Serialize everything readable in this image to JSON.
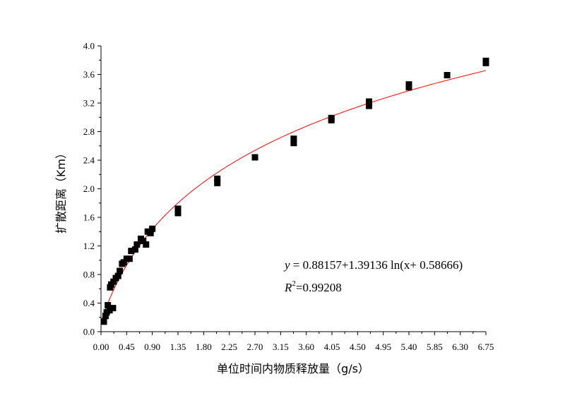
{
  "chart_data": {
    "type": "scatter",
    "xlabel": "单位时间内物质释放量（g/s）",
    "ylabel": "扩散距离（Km）",
    "xlim": [
      0,
      6.75
    ],
    "ylim": [
      0,
      4.0
    ],
    "xticks": [
      "0.00",
      "0.45",
      "0.90",
      "1.35",
      "1.80",
      "2.25",
      "2.70",
      "3.15",
      "3.60",
      "4.05",
      "4.50",
      "4.95",
      "5.40",
      "5.85",
      "6.30",
      "6.75"
    ],
    "yticks": [
      "0.0",
      "0.4",
      "0.8",
      "1.2",
      "1.6",
      "2.0",
      "2.4",
      "2.8",
      "3.2",
      "3.6",
      "4.0"
    ],
    "grid": false,
    "points": [
      [
        0.05,
        0.14
      ],
      [
        0.08,
        0.22
      ],
      [
        0.1,
        0.27
      ],
      [
        0.12,
        0.37
      ],
      [
        0.15,
        0.3
      ],
      [
        0.16,
        0.62
      ],
      [
        0.18,
        0.66
      ],
      [
        0.21,
        0.33
      ],
      [
        0.22,
        0.7
      ],
      [
        0.26,
        0.75
      ],
      [
        0.3,
        0.78
      ],
      [
        0.33,
        0.85
      ],
      [
        0.37,
        0.95
      ],
      [
        0.4,
        0.97
      ],
      [
        0.45,
        1.02
      ],
      [
        0.5,
        1.02
      ],
      [
        0.53,
        1.13
      ],
      [
        0.6,
        1.15
      ],
      [
        0.63,
        1.22
      ],
      [
        0.7,
        1.3
      ],
      [
        0.74,
        1.27
      ],
      [
        0.79,
        1.22
      ],
      [
        0.82,
        1.4
      ],
      [
        0.87,
        1.38
      ],
      [
        0.9,
        1.44
      ],
      [
        1.35,
        1.66
      ],
      [
        1.35,
        1.72
      ],
      [
        2.04,
        2.08
      ],
      [
        2.04,
        2.14
      ],
      [
        2.7,
        2.44
      ],
      [
        3.38,
        2.64
      ],
      [
        3.38,
        2.7
      ],
      [
        4.04,
        2.96
      ],
      [
        4.04,
        2.99
      ],
      [
        4.7,
        3.16
      ],
      [
        4.7,
        3.22
      ],
      [
        5.4,
        3.42
      ],
      [
        5.4,
        3.46
      ],
      [
        6.07,
        3.59
      ],
      [
        6.75,
        3.76
      ],
      [
        6.75,
        3.79
      ]
    ],
    "fit": {
      "a": 0.88157,
      "b": 1.39136,
      "c": 0.58666,
      "color": "#ff0000",
      "equation": "y = 0.88157+1.39136ln(x+0.58666)",
      "equation_lhs": "y",
      "equation_rhs": " = 0.88157+1.39136 ln(x+ 0.58666)",
      "r2_label": "R",
      "r2_exp": "2",
      "r2_value": "=0.99208"
    },
    "marker_color": "#000000"
  }
}
